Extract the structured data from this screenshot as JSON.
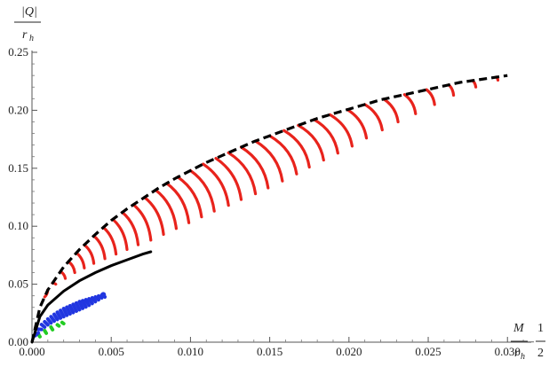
{
  "chart_data": {
    "type": "line",
    "title": "",
    "ylabel_num": "|Q|",
    "ylabel_den": "r",
    "ylabel_den_sub": "h",
    "xlabel_num_left": "M",
    "xlabel_den_left": "r",
    "xlabel_den_left_sub": "h",
    "xlabel_minus": "–",
    "xlabel_num_right": "1",
    "xlabel_den_right": "2",
    "xlim": [
      0,
      0.0315
    ],
    "ylim": [
      0,
      0.25
    ],
    "x_ticks": [
      "0.000",
      "0.005",
      "0.010",
      "0.015",
      "0.020",
      "0.025",
      "0.030"
    ],
    "x_tick_values": [
      0,
      0.005,
      0.01,
      0.015,
      0.02,
      0.025,
      0.03
    ],
    "y_ticks": [
      "0.00",
      "0.05",
      "0.10",
      "0.15",
      "0.20",
      "0.25"
    ],
    "y_tick_values": [
      0,
      0.05,
      0.1,
      0.15,
      0.2,
      0.25
    ],
    "grid": false,
    "legend": "none",
    "colors": {
      "dashed_envelope": "#000000",
      "lower_solid": "#000000",
      "red_family": "#e8231c",
      "blue_family": "#2136e0",
      "green_family": "#22cc22"
    },
    "series": [
      {
        "style": "dashed",
        "color": "#000000",
        "x": [
          0,
          0.0005,
          0.001,
          0.002,
          0.003,
          0.004,
          0.005,
          0.006,
          0.007,
          0.008,
          0.009,
          0.01,
          0.011,
          0.012,
          0.013,
          0.014,
          0.015,
          0.016,
          0.017,
          0.018,
          0.019,
          0.02,
          0.021,
          0.022,
          0.023,
          0.024,
          0.025,
          0.026,
          0.027,
          0.028,
          0.029,
          0.03
        ],
        "y": [
          0,
          0.03,
          0.045,
          0.065,
          0.08,
          0.093,
          0.105,
          0.115,
          0.124,
          0.133,
          0.141,
          0.148,
          0.155,
          0.161,
          0.167,
          0.173,
          0.178,
          0.183,
          0.188,
          0.193,
          0.197,
          0.201,
          0.205,
          0.209,
          0.212,
          0.215,
          0.218,
          0.221,
          0.224,
          0.226,
          0.228,
          0.23
        ]
      },
      {
        "style": "solid",
        "color": "#000000",
        "x": [
          0,
          0.0005,
          0.001,
          0.002,
          0.003,
          0.004,
          0.005,
          0.006,
          0.007,
          0.0075
        ],
        "y": [
          0,
          0.022,
          0.032,
          0.044,
          0.053,
          0.06,
          0.066,
          0.071,
          0.076,
          0.078
        ]
      }
    ],
    "red_strands": {
      "color": "#e8231c",
      "tops_x": [
        0.0008,
        0.0013,
        0.0018,
        0.0023,
        0.0028,
        0.0033,
        0.0039,
        0.0045,
        0.0051,
        0.0057,
        0.0064,
        0.0071,
        0.0078,
        0.0085,
        0.0092,
        0.01,
        0.0108,
        0.0116,
        0.0124,
        0.0132,
        0.0141,
        0.015,
        0.0159,
        0.0168,
        0.0178,
        0.0188,
        0.0199,
        0.021,
        0.0222,
        0.0235,
        0.0249,
        0.0263,
        0.0278,
        0.0293
      ],
      "bottoms_x": [
        0.001,
        0.0015,
        0.0021,
        0.0027,
        0.0033,
        0.0039,
        0.0046,
        0.0053,
        0.006,
        0.0067,
        0.0075,
        0.0083,
        0.0091,
        0.0099,
        0.0107,
        0.0115,
        0.0124,
        0.0132,
        0.0141,
        0.0149,
        0.0158,
        0.0167,
        0.0175,
        0.0184,
        0.0193,
        0.0202,
        0.0211,
        0.0221,
        0.0231,
        0.0242,
        0.0254,
        0.0266,
        0.028,
        0.0294
      ],
      "bottoms_y": [
        0.045,
        0.05,
        0.055,
        0.06,
        0.064,
        0.068,
        0.072,
        0.076,
        0.08,
        0.084,
        0.088,
        0.093,
        0.098,
        0.103,
        0.108,
        0.113,
        0.118,
        0.123,
        0.128,
        0.133,
        0.139,
        0.145,
        0.151,
        0.157,
        0.163,
        0.169,
        0.176,
        0.183,
        0.19,
        0.197,
        0.205,
        0.213,
        0.22,
        0.226
      ]
    },
    "blue_strands": {
      "color": "#2136e0",
      "envelope_x": [
        0,
        0.0005,
        0.001,
        0.0015,
        0.002,
        0.0025,
        0.003,
        0.0035,
        0.004,
        0.0045
      ],
      "envelope_y": [
        0,
        0.014,
        0.02,
        0.025,
        0.029,
        0.032,
        0.035,
        0.037,
        0.039,
        0.041
      ],
      "lower_x": [
        0,
        0.0005,
        0.001,
        0.0015,
        0.002,
        0.0025,
        0.003,
        0.0035,
        0.004,
        0.0045
      ],
      "lower_y": [
        0,
        0.01,
        0.015,
        0.019,
        0.022,
        0.025,
        0.028,
        0.031,
        0.035,
        0.039
      ]
    },
    "green_strands": {
      "color": "#22cc22",
      "envelope_x": [
        0,
        0.0004,
        0.0008,
        0.0012,
        0.0016,
        0.0019
      ],
      "envelope_y": [
        0,
        0.007,
        0.01,
        0.013,
        0.015,
        0.017
      ],
      "lower_x": [
        0,
        0.0004,
        0.0008,
        0.0012,
        0.0016,
        0.0019
      ],
      "lower_y": [
        0,
        0.004,
        0.007,
        0.01,
        0.013,
        0.016
      ]
    }
  }
}
